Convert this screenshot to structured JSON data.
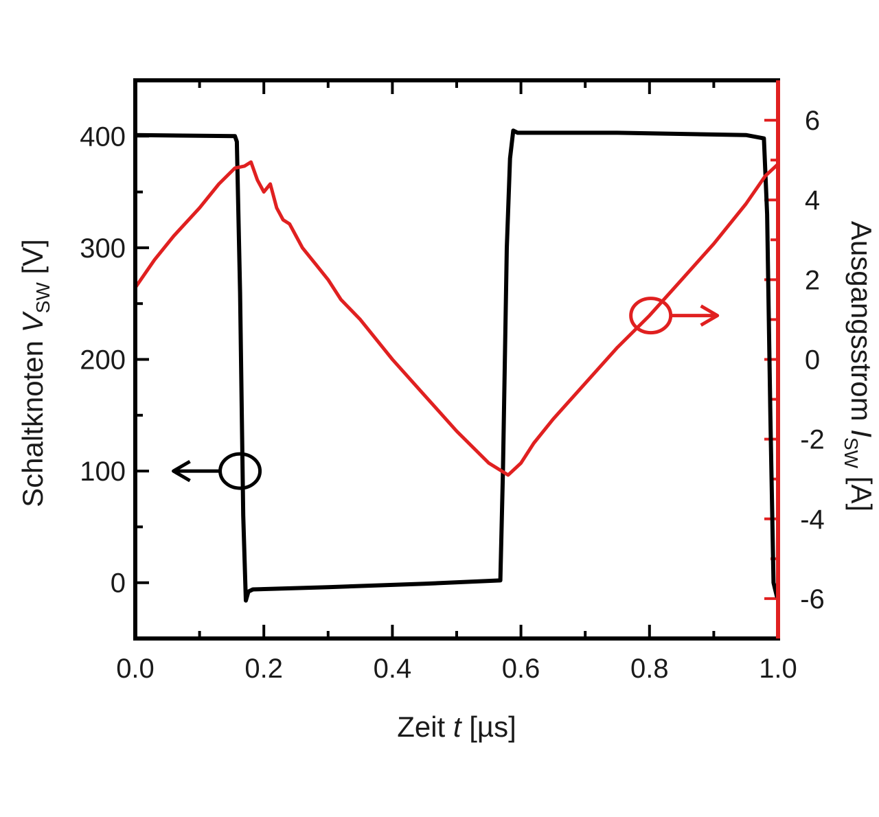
{
  "chart_data": {
    "type": "line",
    "x_axis": {
      "label_prefix": "Zeit ",
      "label_var": "t",
      "label_unit": " [µs]",
      "range": [
        0.0,
        1.0
      ],
      "ticks": [
        0.0,
        0.2,
        0.4,
        0.6,
        0.8,
        1.0
      ],
      "tick_labels": [
        "0.0",
        "0.2",
        "0.4",
        "0.6",
        "0.8",
        "1.0"
      ]
    },
    "y_left": {
      "label_prefix": "Schaltknoten ",
      "label_var": "V",
      "label_sub": "SW",
      "label_unit": " [V]",
      "range": [
        -50,
        450
      ],
      "ticks": [
        0,
        100,
        200,
        300,
        400
      ],
      "tick_labels": [
        "0",
        "100",
        "200",
        "300",
        "400"
      ],
      "color": "#000000"
    },
    "y_right": {
      "label_prefix": "Ausgangsstrom ",
      "label_var": "I",
      "label_sub": "SW",
      "label_unit": " [A]",
      "range": [
        -7,
        7
      ],
      "ticks": [
        -6,
        -4,
        -2,
        0,
        2,
        4,
        6
      ],
      "tick_labels": [
        "-6",
        "-4",
        "-2",
        "0",
        "2",
        "4",
        "6"
      ],
      "color": "#e02020"
    },
    "series": [
      {
        "axis": "left",
        "color": "#000000",
        "x": [
          0.0,
          0.155,
          0.158,
          0.163,
          0.168,
          0.172,
          0.176,
          0.183,
          0.3,
          0.45,
          0.568,
          0.572,
          0.578,
          0.583,
          0.588,
          0.595,
          0.75,
          0.95,
          0.978,
          0.983,
          0.988,
          0.993,
          0.998
        ],
        "y": [
          401,
          400,
          395,
          260,
          60,
          -16,
          -8,
          -6,
          -4,
          -1,
          2,
          100,
          300,
          380,
          405,
          403,
          403,
          401,
          398,
          330,
          150,
          0,
          -12
        ]
      },
      {
        "axis": "right",
        "color": "#e02020",
        "x": [
          0.0,
          0.03,
          0.06,
          0.1,
          0.13,
          0.155,
          0.17,
          0.18,
          0.19,
          0.2,
          0.21,
          0.22,
          0.23,
          0.24,
          0.25,
          0.26,
          0.28,
          0.3,
          0.32,
          0.35,
          0.4,
          0.45,
          0.5,
          0.55,
          0.58,
          0.6,
          0.62,
          0.65,
          0.7,
          0.75,
          0.8,
          0.85,
          0.9,
          0.95,
          0.98,
          1.0
        ],
        "y": [
          1.8,
          2.5,
          3.1,
          3.8,
          4.4,
          4.8,
          4.85,
          4.95,
          4.5,
          4.2,
          4.4,
          3.8,
          3.5,
          3.4,
          3.1,
          2.8,
          2.4,
          2.0,
          1.5,
          1.0,
          0.0,
          -0.9,
          -1.8,
          -2.6,
          -2.9,
          -2.6,
          -2.1,
          -1.5,
          -0.6,
          0.3,
          1.1,
          2.0,
          2.9,
          3.9,
          4.6,
          4.9
        ]
      }
    ],
    "markers": [
      {
        "series_axis": "left",
        "direction": "left",
        "color": "#000000",
        "x": 0.163,
        "y": 100
      },
      {
        "series_axis": "right",
        "direction": "right",
        "color": "#e02020",
        "x": 0.802,
        "y": 1.1
      }
    ]
  }
}
